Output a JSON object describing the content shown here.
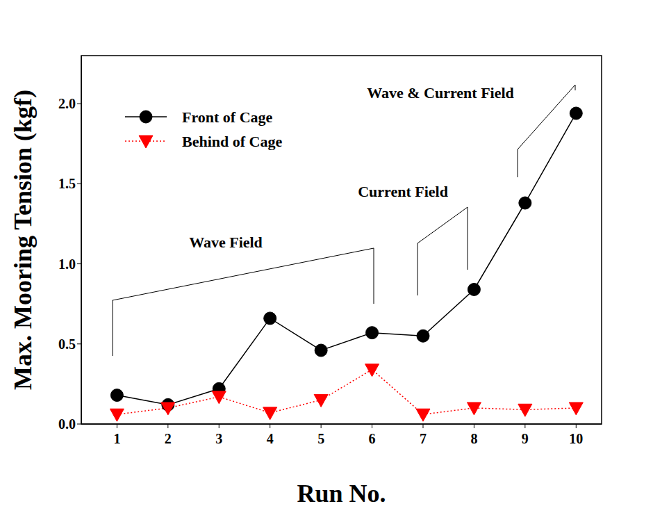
{
  "chart_data": {
    "type": "line",
    "x_label": "Run No.",
    "y_label": "Max. Mooring Tension (kgf)",
    "x": [
      1,
      2,
      3,
      4,
      5,
      6,
      7,
      8,
      9,
      10
    ],
    "series": [
      {
        "name": "Front of Cage",
        "color": "#000000",
        "marker": "circle",
        "line_style": "solid",
        "values": [
          0.18,
          0.12,
          0.22,
          0.66,
          0.46,
          0.57,
          0.55,
          0.84,
          1.38,
          1.94
        ]
      },
      {
        "name": "Behind of Cage",
        "color": "#ff0000",
        "marker": "triangle-down",
        "line_style": "dotted",
        "values": [
          0.06,
          0.1,
          0.17,
          0.07,
          0.15,
          0.34,
          0.06,
          0.1,
          0.09,
          0.1
        ]
      }
    ],
    "xlim": [
      0.3,
      10.5
    ],
    "xticks": [
      1,
      2,
      3,
      4,
      5,
      6,
      7,
      8,
      9,
      10
    ],
    "ylim": [
      0,
      2.3
    ],
    "yticks": [
      {
        "value": 0,
        "label": "0.0"
      },
      {
        "value": 0.5,
        "label": "0.5"
      },
      {
        "value": 1,
        "label": "1.0"
      },
      {
        "value": 1.5,
        "label": "1.5"
      },
      {
        "value": 2,
        "label": "2.0"
      }
    ],
    "annotations": [
      "Wave Field",
      "Current Field",
      "Wave & Current Field"
    ],
    "legend": "top-left",
    "grid": false
  }
}
